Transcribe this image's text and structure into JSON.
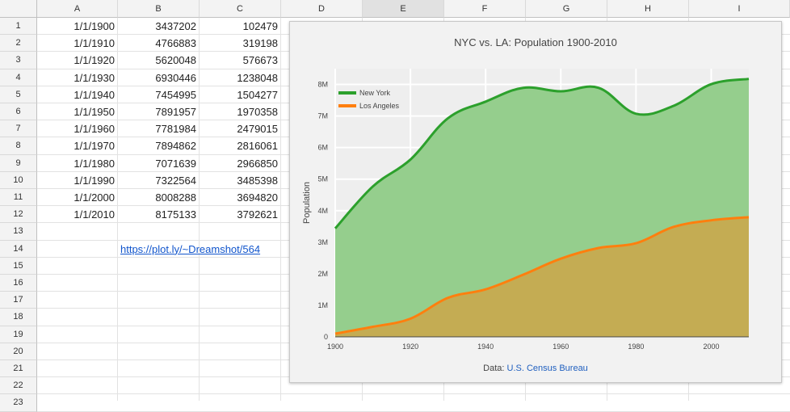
{
  "spreadsheet": {
    "columns": [
      "A",
      "B",
      "C",
      "D",
      "E",
      "F",
      "G",
      "H",
      "I"
    ],
    "selected_column": "E",
    "rows": [
      "1",
      "2",
      "3",
      "4",
      "5",
      "6",
      "7",
      "8",
      "9",
      "10",
      "11",
      "12",
      "13",
      "14",
      "15",
      "16",
      "17",
      "18",
      "19",
      "20",
      "21",
      "22",
      "23"
    ],
    "data": [
      [
        "1/1/1900",
        "3437202",
        "102479"
      ],
      [
        "1/1/1910",
        "4766883",
        "319198"
      ],
      [
        "1/1/1920",
        "5620048",
        "576673"
      ],
      [
        "1/1/1930",
        "6930446",
        "1238048"
      ],
      [
        "1/1/1940",
        "7454995",
        "1504277"
      ],
      [
        "1/1/1950",
        "7891957",
        "1970358"
      ],
      [
        "1/1/1960",
        "7781984",
        "2479015"
      ],
      [
        "1/1/1970",
        "7894862",
        "2816061"
      ],
      [
        "1/1/1980",
        "7071639",
        "2966850"
      ],
      [
        "1/1/1990",
        "7322564",
        "3485398"
      ],
      [
        "1/1/2000",
        "8008288",
        "3694820"
      ],
      [
        "1/1/2010",
        "8175133",
        "3792621"
      ]
    ],
    "link_text": "https://plot.ly/~Dreamshot/564"
  },
  "chart_data": {
    "type": "area",
    "title": "NYC vs. LA: Population 1900-2010",
    "xlabel": "",
    "ylabel": "Population",
    "x": [
      1900,
      1910,
      1920,
      1930,
      1940,
      1950,
      1960,
      1970,
      1980,
      1990,
      2000,
      2010
    ],
    "xlim": [
      1900,
      2010
    ],
    "ylim": [
      0,
      8500000
    ],
    "x_ticks": [
      1900,
      1920,
      1940,
      1960,
      1980,
      2000
    ],
    "y_ticks": [
      0,
      1000000,
      2000000,
      3000000,
      4000000,
      5000000,
      6000000,
      7000000,
      8000000
    ],
    "y_tick_labels": [
      "0",
      "1M",
      "2M",
      "3M",
      "4M",
      "5M",
      "6M",
      "7M",
      "8M"
    ],
    "legend_position": "top-left",
    "grid": true,
    "series": [
      {
        "name": "New York",
        "color": "#2ca02c",
        "fill": "#8fcb87",
        "values": [
          3437202,
          4766883,
          5620048,
          6930446,
          7454995,
          7891957,
          7781984,
          7894862,
          7071639,
          7322564,
          8008288,
          8175133
        ]
      },
      {
        "name": "Los Angeles",
        "color": "#ff7f0e",
        "fill": "#c9a84c",
        "values": [
          102479,
          319198,
          576673,
          1238048,
          1504277,
          1970358,
          2479015,
          2816061,
          2966850,
          3485398,
          3694820,
          3792621
        ]
      }
    ],
    "source_prefix": "Data: ",
    "source_link": "U.S. Census Bureau"
  }
}
